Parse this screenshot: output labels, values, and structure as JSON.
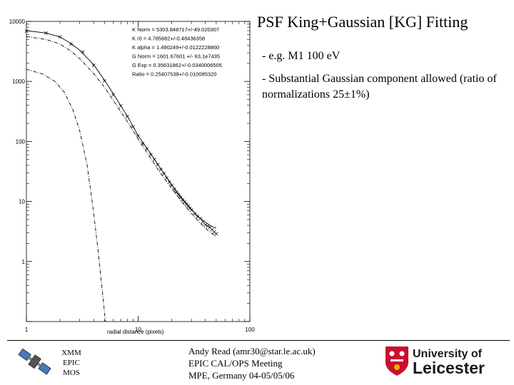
{
  "slide": {
    "title": "PSF King+Gaussian [KG] Fitting",
    "bullets": [
      "- e.g. M1 100 eV",
      "- Substantial Gaussian component allowed (ratio of normalizations 25±1%)"
    ]
  },
  "footer": {
    "mission": [
      "XMM",
      "EPIC",
      "MOS"
    ],
    "author_lines": [
      "Andy Read (amr30@star.le.ac.uk)",
      "EPIC CAL/OPS Meeting",
      "MPE, Germany 04-05/05/06"
    ],
    "logo_text": [
      "University of",
      "Leicester"
    ]
  },
  "chart_data": {
    "type": "line",
    "title": "",
    "xlabel": "radial distance (pixels)",
    "ylabel": "",
    "xscale": "log",
    "yscale": "log",
    "xlim": [
      1,
      100
    ],
    "ylim": [
      0.1,
      10000
    ],
    "x_tick_labels": [
      "1",
      "10",
      "100"
    ],
    "y_tick_labels": [
      "10000",
      "1000",
      "100",
      "10",
      "1"
    ],
    "grid": false,
    "legend": "none",
    "fit_parameters": [
      "K Norm = 5303.848717+/-49.020307",
      "K r0 = 4.785682+/-0.48436358",
      "K alpha = 1.490249+/-0.0122228860",
      "G Norm = 1601.67601 +/- 63.1e7435",
      "G Exp = 0.35631862+/-0.0340006505",
      "Ratio = 0.25407538+/-0.010085320"
    ],
    "series": [
      {
        "style": "solid",
        "x": [
          1,
          1.5,
          2,
          2.5,
          3,
          4,
          5,
          6,
          8,
          10,
          13,
          16,
          20,
          25,
          30,
          35,
          40,
          45,
          50
        ],
        "y": [
          7000,
          6400,
          5500,
          4300,
          3300,
          1900,
          1050,
          620,
          265,
          125,
          62,
          35,
          19,
          11,
          7.4,
          5.5,
          4.5,
          3.9,
          3.6
        ]
      },
      {
        "style": "dash-dot",
        "x": [
          1,
          1.5,
          2,
          2.5,
          3,
          4,
          5,
          6,
          8,
          10,
          13,
          16,
          20,
          25,
          30,
          35,
          40,
          45,
          50
        ],
        "y": [
          5600,
          5000,
          4200,
          3200,
          2400,
          1350,
          800,
          480,
          215,
          110,
          52,
          29,
          16.5,
          9.5,
          6.3,
          4.6,
          3.6,
          3.0,
          2.6
        ]
      },
      {
        "style": "dash-dot",
        "x": [
          1,
          1.4,
          1.8,
          2.2,
          2.6,
          3.0,
          3.5,
          4.0,
          4.4,
          4.8,
          5.1
        ],
        "y": [
          1600,
          1320,
          1000,
          650,
          340,
          150,
          40,
          6.5,
          1.4,
          0.3,
          0.1
        ]
      },
      {
        "style": "markers",
        "x": [
          1,
          1.5,
          2,
          2.5,
          3.2,
          4,
          5,
          6,
          7,
          8,
          9,
          10,
          11,
          12,
          13,
          14,
          15,
          16,
          17,
          18,
          19,
          20,
          21,
          22,
          23,
          24,
          25,
          26,
          27,
          28,
          29,
          30,
          32,
          34,
          36,
          38,
          40,
          42,
          44,
          46,
          48,
          50
        ],
        "y": [
          6900,
          6400,
          5500,
          4200,
          3100,
          1850,
          1020,
          600,
          390,
          260,
          175,
          123,
          92,
          75,
          60,
          50,
          41,
          34,
          29,
          24.5,
          21,
          18.5,
          16,
          14.2,
          12.9,
          11.6,
          10.6,
          9.8,
          9.0,
          8.4,
          7.7,
          7.2,
          6.2,
          5.6,
          5.2,
          4.6,
          4.1,
          3.9,
          3.7,
          3.4,
          3.1,
          2.9
        ]
      }
    ]
  }
}
